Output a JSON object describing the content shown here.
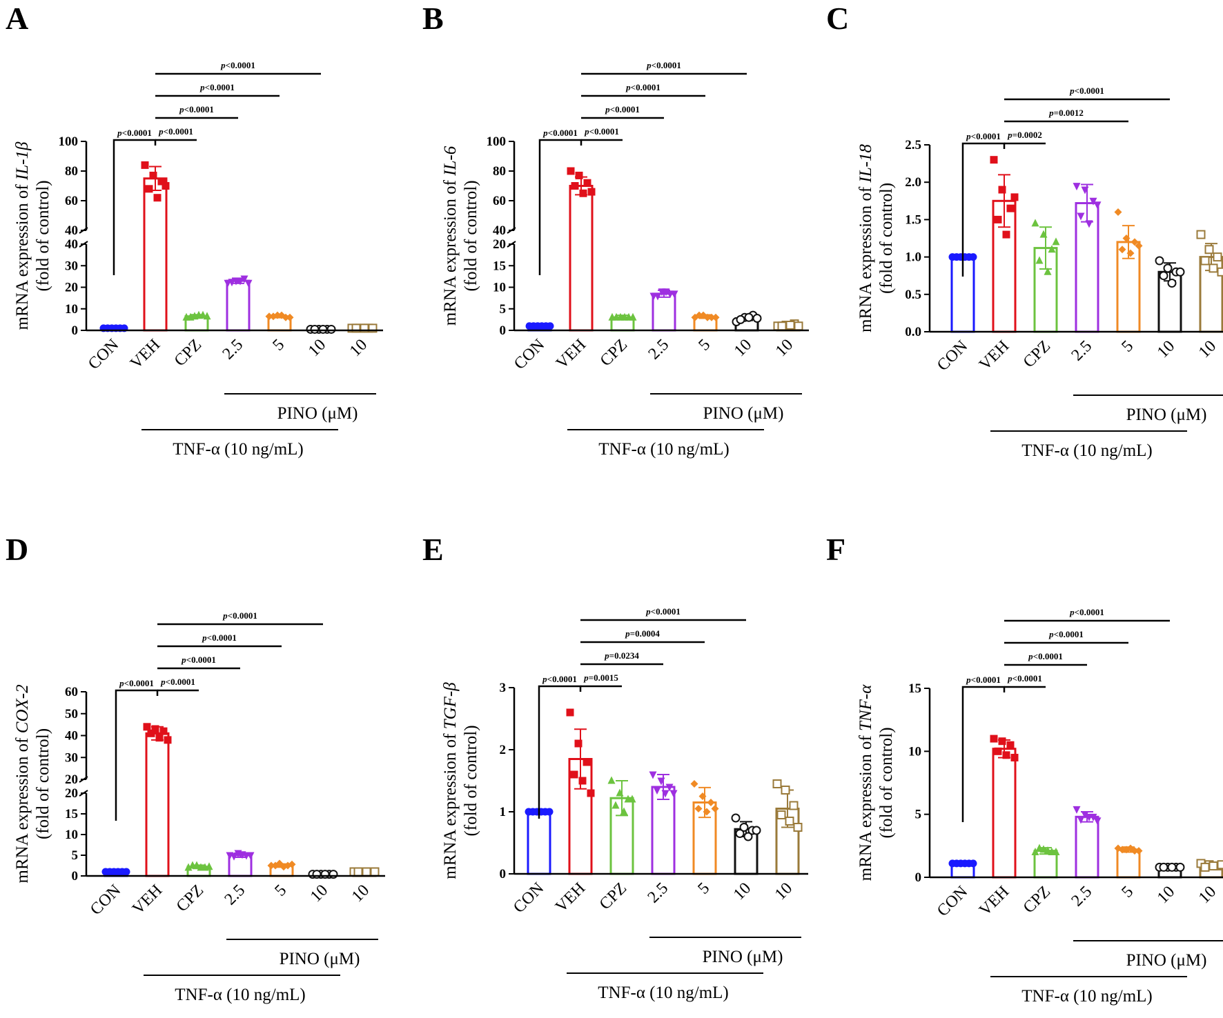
{
  "figure": {
    "common": {
      "categories": [
        "CON",
        "VEH",
        "CPZ",
        "2.5",
        "5",
        "10",
        "10"
      ],
      "group_pino": "PINO (μM)",
      "group_tnf": "TNF-α (10 ng/mL)",
      "ylabel_line1_prefix": "mRNA expression of ",
      "ylabel_line2": "(fold of control)",
      "colors": [
        "#1a1aff",
        "#e0101a",
        "#6cc33f",
        "#9e2fe0",
        "#f08a24",
        "#111111",
        "#9a7a3a"
      ],
      "markers": [
        "circle-filled",
        "square-filled",
        "triangle-filled",
        "triangle-down-filled",
        "diamond-filled",
        "circle-open",
        "square-open"
      ]
    }
  },
  "chart_data": [
    {
      "panel": "A",
      "type": "bar",
      "gene": "IL-1β",
      "broken_axis": true,
      "lower_ticks": [
        "0",
        "10",
        "20",
        "30",
        "40"
      ],
      "upper_ticks": [
        "40",
        "60",
        "80",
        "100"
      ],
      "lower_range": [
        0,
        40
      ],
      "upper_range": [
        40,
        100
      ],
      "means": [
        1,
        75,
        6.5,
        23,
        6.5,
        0.5,
        1
      ],
      "errors": [
        0.3,
        8,
        0.8,
        1.2,
        0.6,
        0.2,
        0.4
      ],
      "points": [
        [
          1,
          1,
          1,
          1,
          1,
          1
        ],
        [
          84,
          77,
          73,
          68,
          62,
          70
        ],
        [
          6,
          6.5,
          7,
          6,
          7,
          6.5
        ],
        [
          22,
          23,
          24,
          22.5,
          23,
          22
        ],
        [
          6.5,
          7,
          6,
          6.5,
          7,
          6
        ],
        [
          0.5,
          0.5,
          0.5,
          0.5,
          0.5,
          0.5
        ],
        [
          1,
          1,
          1,
          1,
          1,
          1
        ]
      ],
      "comparisons": [
        {
          "label": "p<0.0001",
          "to": 0
        },
        {
          "label": "p<0.0001",
          "to": 2
        },
        {
          "label": "p<0.0001",
          "to": 3
        },
        {
          "label": "p<0.0001",
          "to": 4
        },
        {
          "label": "p<0.0001",
          "to": 5
        }
      ]
    },
    {
      "panel": "B",
      "type": "bar",
      "gene": "IL-6",
      "broken_axis": true,
      "lower_ticks": [
        "0",
        "5",
        "10",
        "15",
        "20"
      ],
      "upper_ticks": [
        "40",
        "60",
        "80",
        "100"
      ],
      "lower_range": [
        0,
        20
      ],
      "upper_range": [
        40,
        100
      ],
      "means": [
        1,
        70,
        3,
        8.5,
        3.2,
        2.8,
        1.2
      ],
      "errors": [
        0.2,
        6,
        0.5,
        0.8,
        0.4,
        0.5,
        0.3
      ],
      "points": [
        [
          1,
          1,
          1,
          1,
          1,
          1
        ],
        [
          80,
          77,
          72,
          70,
          65,
          66
        ],
        [
          3,
          3,
          3,
          3,
          3,
          3
        ],
        [
          8,
          9,
          8.5,
          8,
          9,
          8.5
        ],
        [
          3,
          3.5,
          3,
          3.5,
          3,
          3
        ],
        [
          2,
          3,
          3.5,
          2.5,
          3,
          2.8
        ],
        [
          1,
          1.2,
          1.5,
          1,
          1.2,
          1
        ]
      ],
      "comparisons": [
        {
          "label": "p<0.0001",
          "to": 0
        },
        {
          "label": "p<0.0001",
          "to": 2
        },
        {
          "label": "p<0.0001",
          "to": 3
        },
        {
          "label": "p<0.0001",
          "to": 4
        },
        {
          "label": "p<0.0001",
          "to": 5
        }
      ]
    },
    {
      "panel": "C",
      "type": "bar",
      "gene": "IL-18",
      "broken_axis": false,
      "ticks": [
        "0.0",
        "0.5",
        "1.0",
        "1.5",
        "2.0",
        "2.5"
      ],
      "range": [
        0,
        2.5
      ],
      "step": 0.5,
      "means": [
        1,
        1.75,
        1.12,
        1.72,
        1.2,
        0.8,
        1.0
      ],
      "errors": [
        0.02,
        0.35,
        0.28,
        0.25,
        0.22,
        0.12,
        0.18
      ],
      "points": [
        [
          1,
          1,
          1,
          1,
          1,
          1
        ],
        [
          2.3,
          1.9,
          1.65,
          1.5,
          1.3,
          1.8
        ],
        [
          1.45,
          1.3,
          1.1,
          0.95,
          0.8,
          1.2
        ],
        [
          1.95,
          1.9,
          1.75,
          1.55,
          1.45,
          1.7
        ],
        [
          1.6,
          1.25,
          1.2,
          1.1,
          1.05,
          1.15
        ],
        [
          0.95,
          0.85,
          0.8,
          0.75,
          0.65,
          0.8
        ],
        [
          1.3,
          1.1,
          1.0,
          0.95,
          0.85,
          0.8
        ]
      ],
      "comparisons": [
        {
          "label": "p<0.0001",
          "to": 0
        },
        {
          "label": "p=0.0002",
          "to": 2
        },
        {
          "label": "p=0.0012",
          "to": 4
        },
        {
          "label": "p<0.0001",
          "to": 5
        }
      ]
    },
    {
      "panel": "D",
      "type": "bar",
      "gene": "COX-2",
      "broken_axis": true,
      "lower_ticks": [
        "0",
        "5",
        "10",
        "15",
        "20"
      ],
      "upper_ticks": [
        "20",
        "30",
        "40",
        "50",
        "60"
      ],
      "lower_range": [
        0,
        20
      ],
      "upper_range": [
        20,
        60
      ],
      "means": [
        1,
        41,
        2.2,
        5,
        2.5,
        0.4,
        1
      ],
      "errors": [
        0.2,
        3,
        0.4,
        0.5,
        0.4,
        0.2,
        0.3
      ],
      "points": [
        [
          1,
          1,
          1,
          1,
          1,
          1
        ],
        [
          44,
          43,
          42,
          41,
          39,
          38
        ],
        [
          2,
          2.5,
          2,
          2.5,
          2,
          2.2
        ],
        [
          5,
          5.5,
          5,
          4.8,
          5.2,
          5
        ],
        [
          2.5,
          3,
          2.5,
          2.5,
          2.2,
          2.8
        ],
        [
          0.4,
          0.4,
          0.4,
          0.4,
          0.4,
          0.4
        ],
        [
          1,
          1,
          1,
          1,
          1,
          1
        ]
      ],
      "comparisons": [
        {
          "label": "p<0.0001",
          "to": 0
        },
        {
          "label": "p<0.0001",
          "to": 2
        },
        {
          "label": "p<0.0001",
          "to": 3
        },
        {
          "label": "p<0.0001",
          "to": 4
        },
        {
          "label": "p<0.0001",
          "to": 5
        }
      ]
    },
    {
      "panel": "E",
      "type": "bar",
      "gene": "TGF-β",
      "broken_axis": false,
      "ticks": [
        "0",
        "1",
        "2",
        "3"
      ],
      "range": [
        0,
        3
      ],
      "step": 1,
      "means": [
        1,
        1.85,
        1.22,
        1.4,
        1.15,
        0.72,
        1.05
      ],
      "errors": [
        0.04,
        0.48,
        0.28,
        0.2,
        0.24,
        0.12,
        0.3
      ],
      "points": [
        [
          1,
          1,
          1,
          1,
          1,
          1
        ],
        [
          2.6,
          2.1,
          1.8,
          1.6,
          1.5,
          1.3
        ],
        [
          1.5,
          1.3,
          1.2,
          1.1,
          1.0,
          1.2
        ],
        [
          1.6,
          1.5,
          1.4,
          1.35,
          1.3,
          1.3
        ],
        [
          1.45,
          1.25,
          1.15,
          1.05,
          1.0,
          1.05
        ],
        [
          0.9,
          0.75,
          0.7,
          0.65,
          0.6,
          0.7
        ],
        [
          1.45,
          1.35,
          1.1,
          0.95,
          0.85,
          0.75
        ]
      ],
      "comparisons": [
        {
          "label": "p<0.0001",
          "to": 0
        },
        {
          "label": "p=0.0015",
          "to": 2
        },
        {
          "label": "p=0.0234",
          "to": 3
        },
        {
          "label": "p=0.0004",
          "to": 4
        },
        {
          "label": "p<0.0001",
          "to": 5
        }
      ]
    },
    {
      "panel": "F",
      "type": "bar",
      "gene": "TNF-α",
      "broken_axis": false,
      "ticks": [
        "0",
        "5",
        "10",
        "15"
      ],
      "range": [
        0,
        15
      ],
      "step": 5,
      "means": [
        1.1,
        10.2,
        2.1,
        4.8,
        2.2,
        0.8,
        0.9
      ],
      "errors": [
        0.1,
        0.7,
        0.25,
        0.4,
        0.2,
        0.15,
        0.2
      ],
      "points": [
        [
          1.1,
          1.1,
          1.1,
          1.1,
          1.1,
          1.1
        ],
        [
          11,
          10.8,
          10.5,
          10,
          9.7,
          9.5
        ],
        [
          2,
          2.2,
          2,
          2.3,
          2.1,
          2
        ],
        [
          5.4,
          5,
          4.8,
          4.6,
          4.8,
          4.5
        ],
        [
          2.3,
          2.2,
          2.1,
          2.2,
          2.3,
          2.1
        ],
        [
          0.8,
          0.8,
          0.8,
          0.8,
          0.8,
          0.8
        ],
        [
          1.1,
          1,
          0.9,
          0.8,
          0.9,
          1
        ]
      ],
      "comparisons": [
        {
          "label": "p<0.0001",
          "to": 0
        },
        {
          "label": "p<0.0001",
          "to": 2
        },
        {
          "label": "p<0.0001",
          "to": 3
        },
        {
          "label": "p<0.0001",
          "to": 4
        },
        {
          "label": "p<0.0001",
          "to": 5
        }
      ]
    }
  ]
}
